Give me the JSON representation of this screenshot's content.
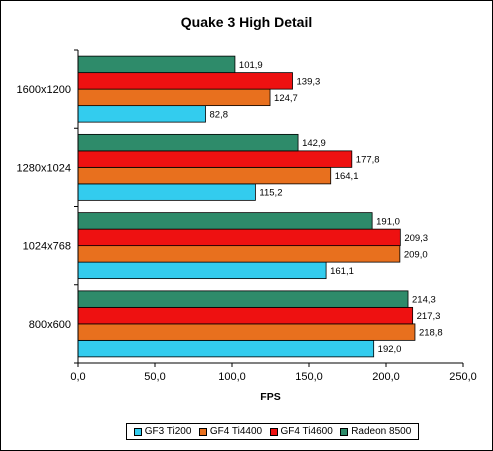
{
  "chart_data": {
    "type": "bar",
    "orientation": "horizontal",
    "title": "Quake 3 High Detail",
    "xlabel": "FPS",
    "ylabel": "",
    "xlim": [
      0,
      250
    ],
    "xticks": [
      "0,0",
      "50,0",
      "100,0",
      "150,0",
      "200,0",
      "250,0"
    ],
    "xtick_values": [
      0,
      50,
      100,
      150,
      200,
      250
    ],
    "categories": [
      "1600x1200",
      "1280x1024",
      "1024x768",
      "800x600"
    ],
    "series": [
      {
        "name": "GF3 Ti200",
        "color": "#33ccee",
        "values": [
          82.8,
          115.2,
          161.1,
          192.0
        ],
        "labels": [
          "82,8",
          "115,2",
          "161,1",
          "192,0"
        ]
      },
      {
        "name": "GF4 Ti4400",
        "color": "#e8701e",
        "values": [
          124.7,
          164.1,
          209.0,
          218.8
        ],
        "labels": [
          "124,7",
          "164,1",
          "209,0",
          "218,8"
        ]
      },
      {
        "name": "GF4 Ti4600",
        "color": "#ee1111",
        "values": [
          139.3,
          177.8,
          209.3,
          217.3
        ],
        "labels": [
          "139,3",
          "177,8",
          "209,3",
          "217,3"
        ]
      },
      {
        "name": "Radeon 8500",
        "color": "#2e8b6a",
        "values": [
          101.9,
          142.9,
          191.0,
          214.3
        ],
        "labels": [
          "101,9",
          "142,9",
          "191,0",
          "214,3"
        ]
      }
    ],
    "grid": false,
    "legend_position": "bottom"
  }
}
